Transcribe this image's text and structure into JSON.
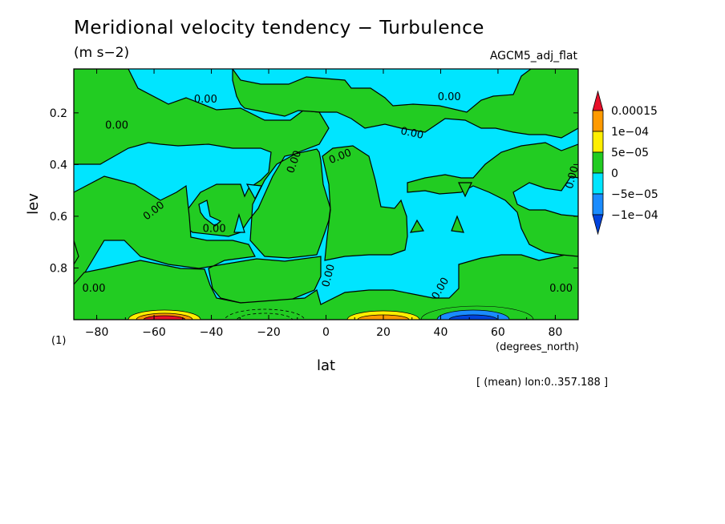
{
  "chart_data": {
    "type": "heatmap",
    "title": "Meridional velocity tendency − Turbulence",
    "units": "(m s−2)",
    "model": "AGCM5_adj_flat",
    "xlabel": "lat",
    "xunits": "(degrees_north)",
    "ylabel": "lev",
    "note": "(1)",
    "footer": "[ (mean) lon:0..357.188 ]",
    "xlim": [
      -88,
      88
    ],
    "ylim": [
      1.0,
      0.03
    ],
    "xticks": [
      -80,
      -60,
      -40,
      -20,
      0,
      20,
      40,
      60,
      80
    ],
    "xtick_labels": [
      "−80",
      "−60",
      "−40",
      "−20",
      "0",
      "20",
      "40",
      "60",
      "80"
    ],
    "yticks": [
      0.2,
      0.4,
      0.6,
      0.8
    ],
    "ytick_labels": [
      "0.2",
      "0.4",
      "0.6",
      "0.8"
    ],
    "colorbar": {
      "labels": [
        "0.00015",
        "1e−04",
        "5e−05",
        "0",
        "−5e−05",
        "−1e−04"
      ],
      "colors": [
        "#e8102a",
        "#ff9a00",
        "#ffee00",
        "#22cc22",
        "#00e5ff",
        "#1a8cff",
        "#0044dd"
      ]
    },
    "contour_labels": [
      {
        "text": "0.00",
        "x": -42,
        "y": 0.15,
        "rot": 0
      },
      {
        "text": "0.00",
        "x": -73,
        "y": 0.25,
        "rot": 0
      },
      {
        "text": "0.00",
        "x": -60,
        "y": 0.58,
        "rot": -38
      },
      {
        "text": "0.00",
        "x": -39,
        "y": 0.65,
        "rot": 0
      },
      {
        "text": "0.00",
        "x": -11,
        "y": 0.39,
        "rot": -70
      },
      {
        "text": "0.00",
        "x": 5,
        "y": 0.37,
        "rot": -22
      },
      {
        "text": "0.00",
        "x": 30,
        "y": 0.28,
        "rot": 12
      },
      {
        "text": "0.00",
        "x": 43,
        "y": 0.14,
        "rot": 0
      },
      {
        "text": "0.00",
        "x": 86,
        "y": 0.45,
        "rot": -75
      },
      {
        "text": "0.00",
        "x": 1,
        "y": 0.83,
        "rot": -75
      },
      {
        "text": "0.00",
        "x": 40,
        "y": 0.88,
        "rot": -60
      },
      {
        "text": "0.00",
        "x": -81,
        "y": 0.88,
        "rot": 0
      },
      {
        "text": "0.00",
        "x": 82,
        "y": 0.88,
        "rot": 0
      }
    ],
    "near_surface_extrema": [
      {
        "lat": -55,
        "sign": "positive",
        "max": "0.00015"
      },
      {
        "lat": -22,
        "sign": "negative",
        "min": "−5e−05"
      },
      {
        "lat": 23,
        "sign": "positive",
        "max": "1e−04"
      },
      {
        "lat": 52,
        "sign": "negative",
        "min": "−1e−04"
      }
    ]
  }
}
